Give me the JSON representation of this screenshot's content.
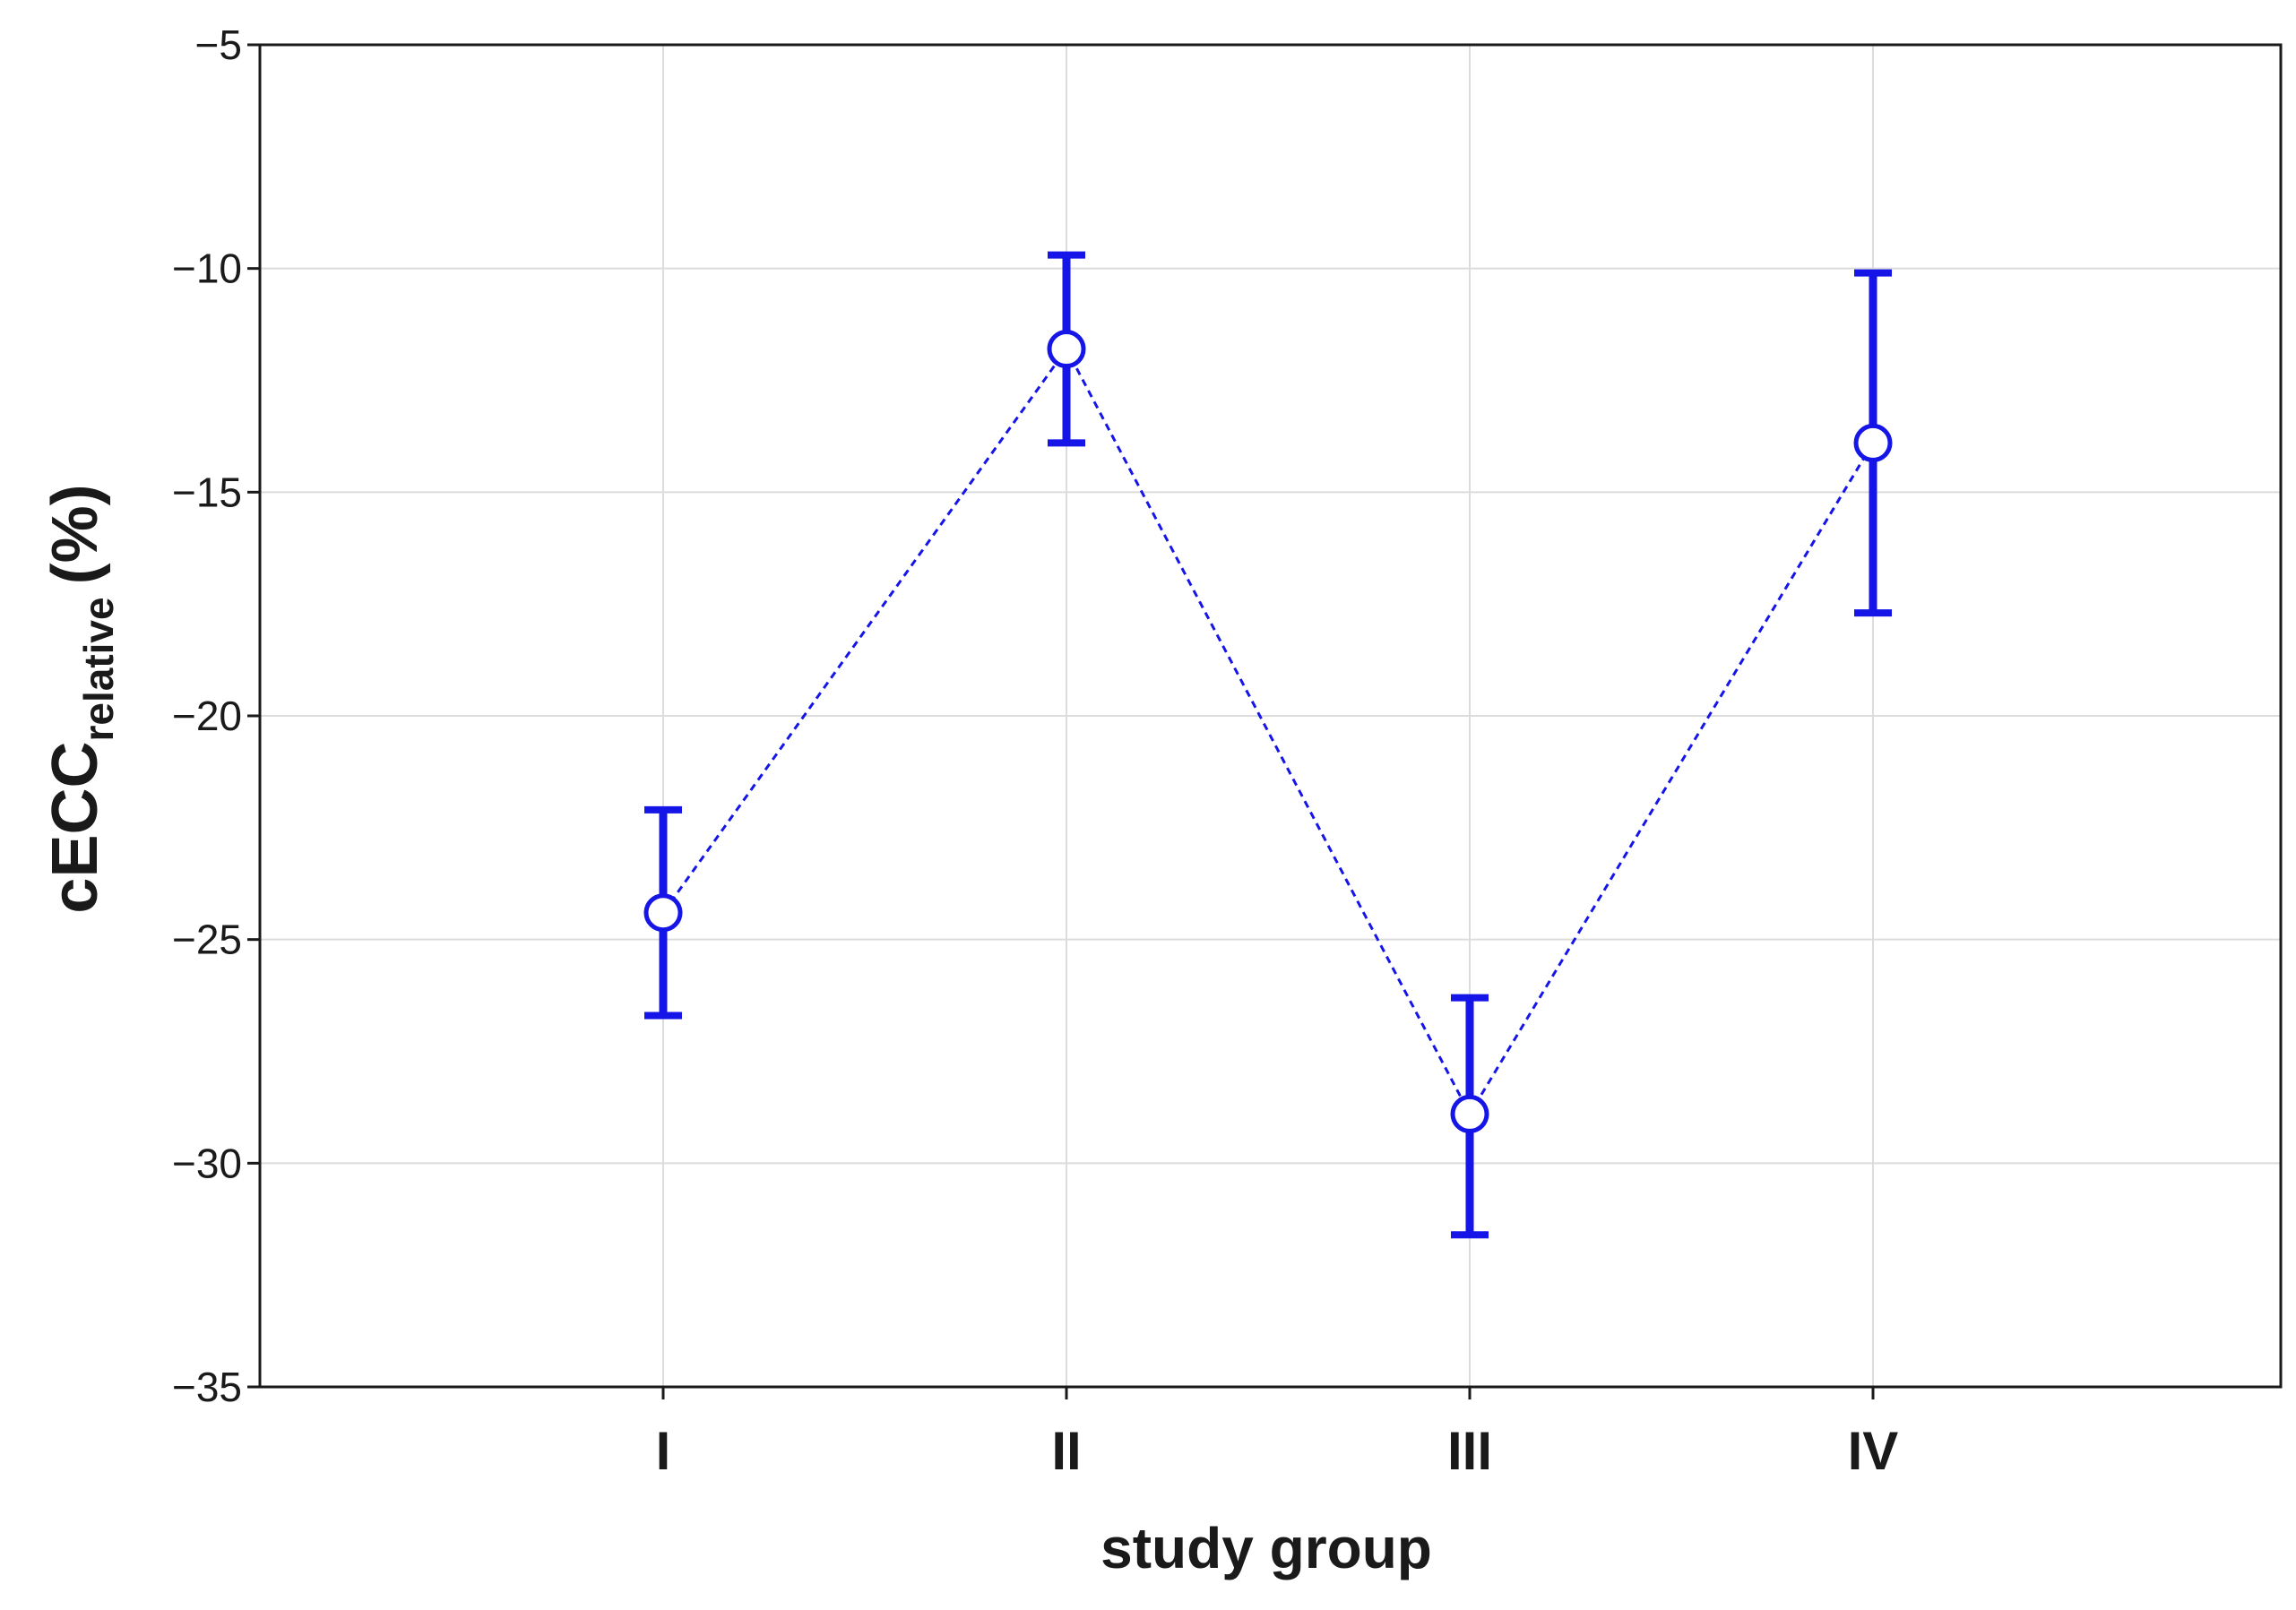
{
  "chart_data": {
    "type": "line",
    "xlabel": "study group",
    "ylabel": "cECC",
    "ylabel_subscript": "relative",
    "ylabel_suffix": "(%)",
    "categories": [
      "I",
      "II",
      "III",
      "IV"
    ],
    "series": [
      {
        "name": "cECC relative",
        "values": [
          -24.4,
          -11.8,
          -28.9,
          -13.9
        ],
        "error_low": [
          -26.7,
          -13.9,
          -31.6,
          -17.7
        ],
        "error_high": [
          -22.1,
          -9.7,
          -26.3,
          -10.1
        ]
      }
    ],
    "ylim": [
      -35,
      -5
    ],
    "yticks": [
      "-35",
      "-30",
      "-25",
      "-20",
      "-15",
      "-10",
      "-5"
    ],
    "grid": true,
    "colors": {
      "series": "#1515e8",
      "grid": "#dcdcdc",
      "axis": "#1a1a1a"
    }
  }
}
